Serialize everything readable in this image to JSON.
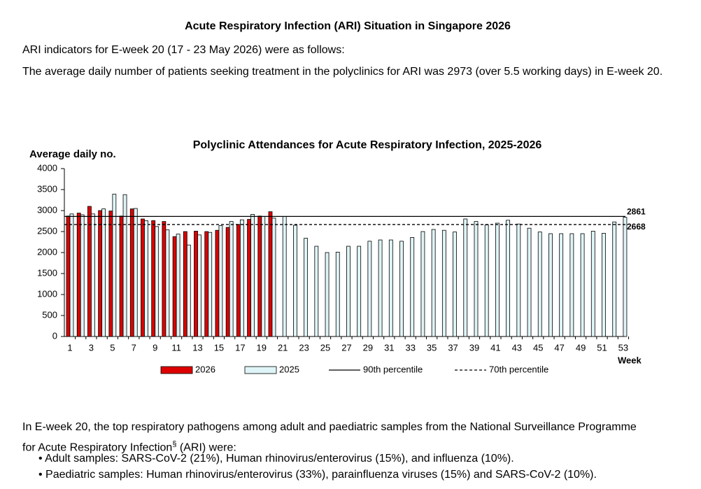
{
  "header": {
    "title": "Acute Respiratory Infection (ARI) Situation in Singapore 2026"
  },
  "intro": [
    "ARI indicators for E-week 20 (17 - 23 May 2026) were as follows:",
    "The average daily number of patients seeking treatment in the polyclinics for ARI was 2973 (over 5.5 working days) in E-week 20."
  ],
  "chart_data": {
    "type": "bar",
    "title": "Polyclinic Attendances for Acute Respiratory Infection, 2025-2026",
    "y_label": "Average daily no.",
    "x_label": "Week",
    "categories": [
      1,
      null,
      3,
      null,
      5,
      null,
      7,
      null,
      9,
      null,
      11,
      null,
      13,
      null,
      15,
      null,
      17,
      null,
      19,
      null,
      21,
      null,
      23,
      null,
      25,
      null,
      27,
      null,
      29,
      null,
      31,
      null,
      33,
      null,
      35,
      null,
      37,
      null,
      39,
      null,
      41,
      null,
      43,
      null,
      45,
      null,
      47,
      null,
      49,
      null,
      51,
      null,
      53
    ],
    "series": [
      {
        "name": "2026",
        "color": "#dd0000",
        "values": [
          2870,
          2940,
          3100,
          3000,
          2990,
          2870,
          3040,
          2800,
          2760,
          2740,
          2380,
          2500,
          2510,
          2500,
          2530,
          2600,
          2670,
          2790,
          2870,
          2973,
          null,
          null,
          null,
          null,
          null,
          null,
          null,
          null,
          null,
          null,
          null,
          null,
          null,
          null,
          null,
          null,
          null,
          null,
          null,
          null,
          null,
          null,
          null,
          null,
          null,
          null,
          null,
          null,
          null,
          null,
          null,
          null,
          null
        ]
      },
      {
        "name": "2025",
        "color": "#dff4f6",
        "values": [
          2920,
          2900,
          2920,
          3040,
          3390,
          3380,
          3050,
          2760,
          2620,
          2540,
          2440,
          2180,
          2420,
          2480,
          2640,
          2740,
          2780,
          2910,
          2860,
          2820,
          2860,
          2650,
          2340,
          2150,
          2000,
          2010,
          2150,
          2150,
          2270,
          2300,
          2300,
          2270,
          2360,
          2500,
          2550,
          2530,
          2490,
          2800,
          2740,
          2660,
          2700,
          2770,
          2680,
          2580,
          2490,
          2450,
          2450,
          2450,
          2450,
          2510,
          2460,
          2730,
          2840
        ]
      }
    ],
    "reference_lines": [
      {
        "name": "90th percentile",
        "value": 2861,
        "style": "solid"
      },
      {
        "name": "70th percentile",
        "value": 2668,
        "style": "dashed"
      }
    ],
    "ylim": [
      0,
      4000
    ],
    "yticks": [
      0,
      500,
      1000,
      1500,
      2000,
      2500,
      3000,
      3500,
      4000
    ],
    "grid": false,
    "legend": "bottom"
  },
  "findings": {
    "lead": "In E-week 20, the top respiratory pathogens among adult and paediatric samples from the National Surveillance Programme for Acute Respiratory Infection",
    "superscript": "§",
    "lead_end": " (ARI) were:",
    "bullets": [
      "Adult samples: SARS-CoV-2 (21%), Human rhinovirus/enterovirus (15%), and influenza (10%).",
      "Paediatric samples: Human rhinovirus/enterovirus (33%), parainfluenza viruses (15%) and SARS-CoV-2 (10%)."
    ]
  }
}
